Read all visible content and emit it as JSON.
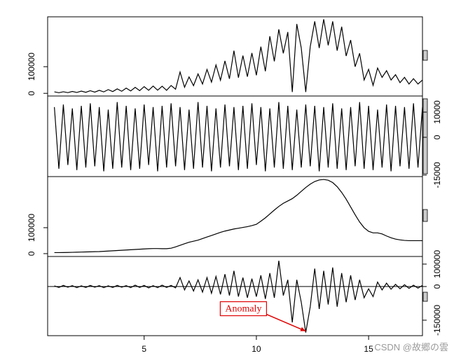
{
  "chart_data": [
    {
      "type": "line",
      "axis_side": "left",
      "xlim": [
        0.7,
        17.4
      ],
      "ylim": [
        -10000,
        287000
      ],
      "yticks": [
        0,
        100000
      ],
      "color": "#000000",
      "x": [
        1.0,
        1.2,
        1.4,
        1.6,
        1.8,
        2.0,
        2.2,
        2.4,
        2.6,
        2.8,
        3.0,
        3.2,
        3.4,
        3.6,
        3.8,
        4.0,
        4.2,
        4.4,
        4.6,
        4.8,
        5.0,
        5.2,
        5.4,
        5.6,
        5.8,
        6.0,
        6.2,
        6.4,
        6.6,
        6.8,
        7.0,
        7.2,
        7.4,
        7.6,
        7.8,
        8.0,
        8.2,
        8.4,
        8.6,
        8.8,
        9.0,
        9.2,
        9.4,
        9.6,
        9.8,
        10.0,
        10.2,
        10.4,
        10.6,
        10.8,
        11.0,
        11.2,
        11.4,
        11.6,
        11.8,
        12.0,
        12.2,
        12.4,
        12.6,
        12.8,
        13.0,
        13.2,
        13.4,
        13.6,
        13.8,
        14.0,
        14.2,
        14.4,
        14.6,
        14.8,
        15.0,
        15.2,
        15.4,
        15.6,
        15.8,
        16.0,
        16.2,
        16.4,
        16.6,
        16.8,
        17.0,
        17.2,
        17.4
      ],
      "values": [
        5600,
        2400,
        5900,
        2700,
        7000,
        3300,
        8400,
        3900,
        9800,
        4500,
        11200,
        5400,
        14000,
        6600,
        16800,
        7800,
        19600,
        9000,
        22400,
        10200,
        25200,
        11400,
        27300,
        11700,
        26600,
        11400,
        29400,
        15600,
        80000,
        22800,
        61600,
        28800,
        72800,
        34800,
        89600,
        42000,
        106400,
        49200,
        121800,
        54600,
        160000,
        58800,
        141400,
        62400,
        151200,
        67800,
        175000,
        82800,
        214200,
        120000,
        240000,
        150000,
        230000,
        5000,
        260000,
        170000,
        5000,
        175000,
        270000,
        170000,
        278000,
        180000,
        270000,
        160000,
        250000,
        140000,
        200000,
        100000,
        150000,
        50000,
        90000,
        30000,
        95000,
        60000,
        85000,
        50000,
        70000,
        40000,
        60000,
        35000,
        55000,
        35000,
        50000
      ]
    },
    {
      "type": "line",
      "axis_side": "right",
      "xlim": [
        0.7,
        17.4
      ],
      "ylim": [
        -15600,
        16400
      ],
      "yticks": [
        -15000,
        0,
        10000
      ],
      "color": "#000000",
      "x": [
        1.0,
        1.2,
        1.4,
        1.6,
        1.8,
        2.0,
        2.2,
        2.4,
        2.6,
        2.8,
        3.0,
        3.2,
        3.4,
        3.6,
        3.8,
        4.0,
        4.2,
        4.4,
        4.6,
        4.8,
        5.0,
        5.2,
        5.4,
        5.6,
        5.8,
        6.0,
        6.2,
        6.4,
        6.6,
        6.8,
        7.0,
        7.2,
        7.4,
        7.6,
        7.8,
        8.0,
        8.2,
        8.4,
        8.6,
        8.8,
        9.0,
        9.2,
        9.4,
        9.6,
        9.8,
        10.0,
        10.2,
        10.4,
        10.6,
        10.8,
        11.0,
        11.2,
        11.4,
        11.6,
        11.8,
        12.0,
        12.2,
        12.4,
        12.6,
        12.8,
        13.0,
        13.2,
        13.4,
        13.6,
        13.8,
        14.0,
        14.2,
        14.4,
        14.6,
        14.8,
        15.0,
        15.2,
        15.4,
        15.6,
        15.8,
        16.0,
        16.2,
        16.4,
        16.6,
        16.8,
        17.0,
        17.2,
        17.4
      ],
      "values": [
        12000,
        -12500,
        13000,
        -11000,
        11500,
        -13000,
        12500,
        -12000,
        13500,
        -11500,
        12000,
        -13500,
        11000,
        -12500,
        14000,
        -12000,
        12500,
        -13000,
        11500,
        -12500,
        13000,
        -11000,
        12000,
        -13500,
        12500,
        -12000,
        13500,
        -11500,
        12000,
        -13000,
        11000,
        -12500,
        14000,
        -12000,
        12500,
        -13500,
        11500,
        -12000,
        13000,
        -11500,
        12000,
        -13000,
        12500,
        -12500,
        13500,
        -11000,
        12000,
        -13500,
        11500,
        -12000,
        14000,
        -12500,
        12500,
        -13000,
        11000,
        -12000,
        13000,
        -11500,
        12500,
        -13500,
        12000,
        -12000,
        13500,
        -12500,
        11500,
        -13000,
        12000,
        -11500,
        14000,
        -12500,
        12500,
        -13000,
        11000,
        -12000,
        13000,
        -13500,
        12500,
        -11500,
        12000,
        -12500,
        13500,
        -12000,
        12000
      ]
    },
    {
      "type": "line",
      "axis_side": "left",
      "xlim": [
        0.7,
        17.4
      ],
      "ylim": [
        -11000,
        297000
      ],
      "yticks": [
        0,
        100000
      ],
      "color": "#000000",
      "x": [
        1.0,
        1.2,
        1.4,
        1.6,
        1.8,
        2.0,
        2.2,
        2.4,
        2.6,
        2.8,
        3.0,
        3.2,
        3.4,
        3.6,
        3.8,
        4.0,
        4.2,
        4.4,
        4.6,
        4.8,
        5.0,
        5.2,
        5.4,
        5.6,
        5.8,
        6.0,
        6.2,
        6.4,
        6.6,
        6.8,
        7.0,
        7.2,
        7.4,
        7.6,
        7.8,
        8.0,
        8.2,
        8.4,
        8.6,
        8.8,
        9.0,
        9.2,
        9.4,
        9.6,
        9.8,
        10.0,
        10.2,
        10.4,
        10.6,
        10.8,
        11.0,
        11.2,
        11.4,
        11.6,
        11.8,
        12.0,
        12.2,
        12.4,
        12.6,
        12.8,
        13.0,
        13.2,
        13.4,
        13.6,
        13.8,
        14.0,
        14.2,
        14.4,
        14.6,
        14.8,
        15.0,
        15.2,
        15.4,
        15.6,
        15.8,
        16.0,
        16.2,
        16.4,
        16.6,
        16.8,
        17.0,
        17.2,
        17.4
      ],
      "values": [
        4000,
        4000,
        4200,
        4500,
        5000,
        5500,
        6000,
        6500,
        7000,
        7500,
        8000,
        9000,
        10000,
        11000,
        12000,
        13000,
        14000,
        15000,
        16000,
        17000,
        18000,
        19000,
        19500,
        19500,
        19000,
        19000,
        21000,
        26000,
        32000,
        38000,
        44000,
        48000,
        52000,
        58000,
        64000,
        70000,
        76000,
        82000,
        87000,
        91000,
        95000,
        98000,
        101000,
        104000,
        108000,
        113000,
        125000,
        138000,
        153000,
        168000,
        182000,
        194000,
        203000,
        212000,
        225000,
        240000,
        255000,
        268000,
        278000,
        284000,
        286000,
        283000,
        274000,
        258000,
        236000,
        210000,
        180000,
        150000,
        122000,
        100000,
        86000,
        80000,
        80000,
        76000,
        68000,
        61000,
        56000,
        53000,
        51000,
        50000,
        50000,
        50000,
        50000
      ]
    },
    {
      "type": "line",
      "axis_side": "right",
      "xlim": [
        0.7,
        17.4
      ],
      "ylim": [
        -219000,
        134000
      ],
      "yticks": [
        -150000,
        0,
        100000
      ],
      "xticks": [
        5,
        10,
        15
      ],
      "color": "#000000",
      "x": [
        1.0,
        1.2,
        1.4,
        1.6,
        1.8,
        2.0,
        2.2,
        2.4,
        2.6,
        2.8,
        3.0,
        3.2,
        3.4,
        3.6,
        3.8,
        4.0,
        4.2,
        4.4,
        4.6,
        4.8,
        5.0,
        5.2,
        5.4,
        5.6,
        5.8,
        6.0,
        6.2,
        6.4,
        6.6,
        6.8,
        7.0,
        7.2,
        7.4,
        7.6,
        7.8,
        8.0,
        8.2,
        8.4,
        8.6,
        8.8,
        9.0,
        9.2,
        9.4,
        9.6,
        9.8,
        10.0,
        10.2,
        10.4,
        10.6,
        10.8,
        11.0,
        11.2,
        11.4,
        11.6,
        11.8,
        12.0,
        12.2,
        12.4,
        12.6,
        12.8,
        13.0,
        13.2,
        13.4,
        13.6,
        13.8,
        14.0,
        14.2,
        14.4,
        14.6,
        14.8,
        15.0,
        15.2,
        15.4,
        15.6,
        15.8,
        16.0,
        16.2,
        16.4,
        16.6,
        16.8,
        17.0,
        17.2,
        17.4
      ],
      "values": [
        3000,
        -4000,
        5000,
        -3000,
        4000,
        -5000,
        3000,
        -4000,
        5000,
        -3000,
        4000,
        -5000,
        3000,
        -4000,
        5000,
        -3000,
        4000,
        -5000,
        6000,
        -4000,
        5000,
        -6000,
        4000,
        -5000,
        6000,
        -4000,
        5000,
        -6000,
        40000,
        -15000,
        25000,
        -20000,
        30000,
        -25000,
        40000,
        -30000,
        45000,
        -35000,
        55000,
        -40000,
        70000,
        -45000,
        40000,
        -50000,
        35000,
        -45000,
        50000,
        -55000,
        60000,
        -50000,
        115000,
        -40000,
        30000,
        -160000,
        30000,
        -70000,
        -205000,
        -90000,
        80000,
        -100000,
        70000,
        -80000,
        85000,
        -90000,
        60000,
        -70000,
        50000,
        -60000,
        30000,
        -50000,
        -10000,
        -45000,
        20000,
        -15000,
        15000,
        -12000,
        10000,
        -10000,
        8000,
        -8000,
        6000,
        -7000,
        5000
      ],
      "annotation": {
        "text": "Anomaly",
        "x": 12.2,
        "y": -205000,
        "color": "#e00000"
      }
    }
  ],
  "watermark": "CSDN @故郷の雲"
}
